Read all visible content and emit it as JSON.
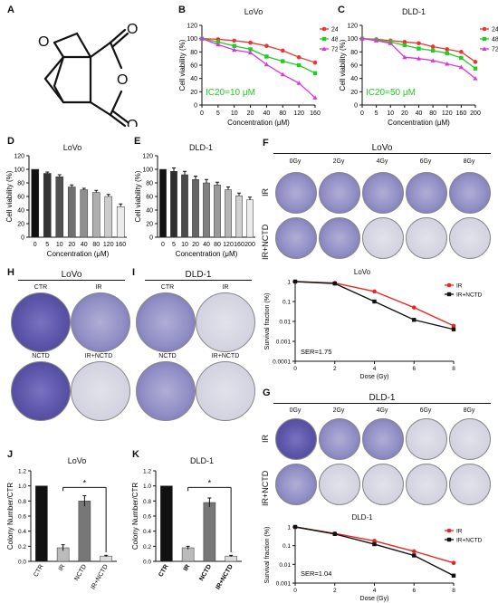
{
  "panels": {
    "A": "A",
    "B": "B",
    "C": "C",
    "D": "D",
    "E": "E",
    "F": "F",
    "G": "G",
    "H": "H",
    "I": "I",
    "J": "J",
    "K": "K"
  },
  "panel_B": {
    "title": "LoVo",
    "ylabel": "Cell viability (%)",
    "xlabel": "Concentration (μM)",
    "annotation": "IC20=10 μM",
    "annotation_color": "#22cc22"
  },
  "panel_C": {
    "title": "DLD-1",
    "ylabel": "Cell viability (%)",
    "xlabel": "Concentration (μM)",
    "annotation": "IC20=50 μM",
    "annotation_color": "#22cc22"
  },
  "panel_D": {
    "title": "LoVo",
    "ylabel": "Cell viability (%)",
    "xlabel": "Concentration (μM)"
  },
  "panel_E": {
    "title": "DLD-1",
    "ylabel": "Cell viability (%)",
    "xlabel": "Concentration (μM)"
  },
  "panel_F": {
    "title": "LoVo",
    "doses": [
      "0Gy",
      "2Gy",
      "4Gy",
      "6Gy",
      "8Gy"
    ],
    "rows": [
      "IR",
      "IR+NCTD"
    ],
    "curve_title": "LoVo",
    "ylabel": "Survival fraction (%)",
    "xlabel": "Dose (Gy)",
    "ser": "SER=1.75"
  },
  "panel_G": {
    "title": "DLD-1",
    "doses": [
      "0Gy",
      "2Gy",
      "4Gy",
      "6Gy",
      "8Gy"
    ],
    "rows": [
      "IR",
      "IR+NCTD"
    ],
    "curve_title": "DLD-1",
    "ylabel": "Survival fraction (%)",
    "xlabel": "Dose (Gy)",
    "ser": "SER=1.04"
  },
  "panel_H": {
    "title": "LoVo",
    "labels": [
      "CTR",
      "IR",
      "NCTD",
      "IR+NCTD"
    ]
  },
  "panel_I": {
    "title": "DLD-1",
    "labels": [
      "CTR",
      "IR",
      "NCTD",
      "IR+NCTD"
    ]
  },
  "panel_J": {
    "title": "LoVo",
    "ylabel": "Colony Number/CTR",
    "sig": "*"
  },
  "panel_K": {
    "title": "DLD-1",
    "ylabel": "Colony Number/CTR",
    "sig": "*"
  },
  "colors": {
    "h24": "#ee3333",
    "h48": "#22cc22",
    "h72": "#dd33dd",
    "ir": "#ee2222",
    "irnctd": "#111111"
  },
  "chart_data": [
    {
      "id": "B",
      "type": "line",
      "x": [
        0,
        5,
        10,
        20,
        40,
        80,
        120,
        160
      ],
      "x_tick_labels": [
        "0",
        "5",
        "10",
        "20",
        "40",
        "80",
        "120",
        "160"
      ],
      "ylim": [
        0,
        120
      ],
      "yticks": [
        0,
        20,
        40,
        60,
        80,
        100,
        120
      ],
      "series": [
        {
          "name": "24H",
          "values": [
            100,
            99,
            97,
            94,
            89,
            82,
            72,
            64
          ]
        },
        {
          "name": "48H",
          "values": [
            100,
            95,
            89,
            84,
            73,
            66,
            60,
            48
          ]
        },
        {
          "name": "72H",
          "values": [
            100,
            91,
            83,
            79,
            61,
            46,
            33,
            11
          ]
        }
      ]
    },
    {
      "id": "C",
      "type": "line",
      "x": [
        0,
        5,
        10,
        20,
        40,
        80,
        120,
        160,
        200
      ],
      "x_tick_labels": [
        "0",
        "5",
        "10",
        "20",
        "40",
        "80",
        "120",
        "160",
        "200"
      ],
      "ylim": [
        0,
        120
      ],
      "yticks": [
        0,
        20,
        40,
        60,
        80,
        100,
        120
      ],
      "series": [
        {
          "name": "24H",
          "values": [
            100,
            99,
            97,
            95,
            93,
            88,
            84,
            80,
            65
          ]
        },
        {
          "name": "48H",
          "values": [
            100,
            98,
            95,
            90,
            85,
            82,
            78,
            71,
            55
          ]
        },
        {
          "name": "72H",
          "values": [
            100,
            97,
            93,
            72,
            70,
            67,
            62,
            57,
            40
          ]
        }
      ]
    },
    {
      "id": "D",
      "type": "bar",
      "categories": [
        "0",
        "5",
        "10",
        "20",
        "40",
        "80",
        "120",
        "160"
      ],
      "values": [
        100,
        94,
        89,
        74,
        70,
        66,
        60,
        45
      ],
      "errors": [
        0,
        2,
        3,
        3,
        2,
        3,
        3,
        4
      ],
      "ylim": [
        0,
        120
      ],
      "yticks": [
        0,
        20,
        40,
        60,
        80,
        100,
        120
      ]
    },
    {
      "id": "E",
      "type": "bar",
      "categories": [
        "0",
        "5",
        "10",
        "20",
        "40",
        "80",
        "120",
        "160",
        "200"
      ],
      "values": [
        100,
        97,
        92,
        85,
        80,
        77,
        70,
        61,
        55
      ],
      "errors": [
        0,
        5,
        5,
        5,
        5,
        4,
        4,
        4,
        4
      ],
      "ylim": [
        0,
        120
      ],
      "yticks": [
        0,
        20,
        40,
        60,
        80,
        100,
        120
      ]
    },
    {
      "id": "F",
      "type": "line",
      "log_y": true,
      "x": [
        0,
        2,
        4,
        6,
        8
      ],
      "yticks": [
        1,
        0.1,
        0.01,
        0.001,
        0.0001
      ],
      "ytick_labels": [
        "1",
        "0.1",
        "0.01",
        "0.001",
        "0.0001"
      ],
      "xticks": [
        0,
        2,
        4,
        6,
        8
      ],
      "series": [
        {
          "name": "IR",
          "values": [
            1,
            0.85,
            0.32,
            0.05,
            0.006
          ]
        },
        {
          "name": "IR+NCTD",
          "values": [
            1,
            0.8,
            0.1,
            0.012,
            0.004
          ]
        }
      ]
    },
    {
      "id": "G",
      "type": "line",
      "log_y": true,
      "x": [
        0,
        2,
        4,
        6,
        8
      ],
      "yticks": [
        1,
        0.1,
        0.01,
        0.001
      ],
      "ytick_labels": [
        "1",
        "0.1",
        "0.01",
        "0.001"
      ],
      "xticks": [
        0,
        2,
        4,
        6,
        8
      ],
      "series": [
        {
          "name": "IR",
          "values": [
            1,
            0.45,
            0.18,
            0.05,
            0.012
          ]
        },
        {
          "name": "IR+NCTD",
          "values": [
            1,
            0.42,
            0.12,
            0.03,
            0.0025
          ]
        }
      ]
    },
    {
      "id": "J",
      "type": "bar",
      "categories": [
        "CTR",
        "IR",
        "NCTD",
        "IR+NCTD"
      ],
      "values": [
        1.0,
        0.18,
        0.8,
        0.07
      ],
      "errors": [
        0,
        0.04,
        0.07,
        0.01
      ],
      "ylim": [
        0,
        1.2
      ],
      "yticks": [
        0.0,
        0.2,
        0.4,
        0.6,
        0.8,
        1.0,
        1.2
      ],
      "ytick_labels": [
        "0.0",
        "0.2",
        "0.4",
        "0.6",
        "0.8",
        "1.0",
        "1.2"
      ]
    },
    {
      "id": "K",
      "type": "bar",
      "categories": [
        "CTR",
        "IR",
        "NCTD",
        "IR+NCTD"
      ],
      "values": [
        1.0,
        0.18,
        0.78,
        0.07
      ],
      "errors": [
        0,
        0.02,
        0.06,
        0.01
      ],
      "ylim": [
        0,
        1.2
      ],
      "yticks": [
        0.0,
        0.2,
        0.4,
        0.6,
        0.8,
        1.0,
        1.2
      ],
      "ytick_labels": [
        "0.0",
        "0.2",
        "0.4",
        "0.6",
        "0.8",
        "1.0",
        "1.2"
      ]
    }
  ]
}
